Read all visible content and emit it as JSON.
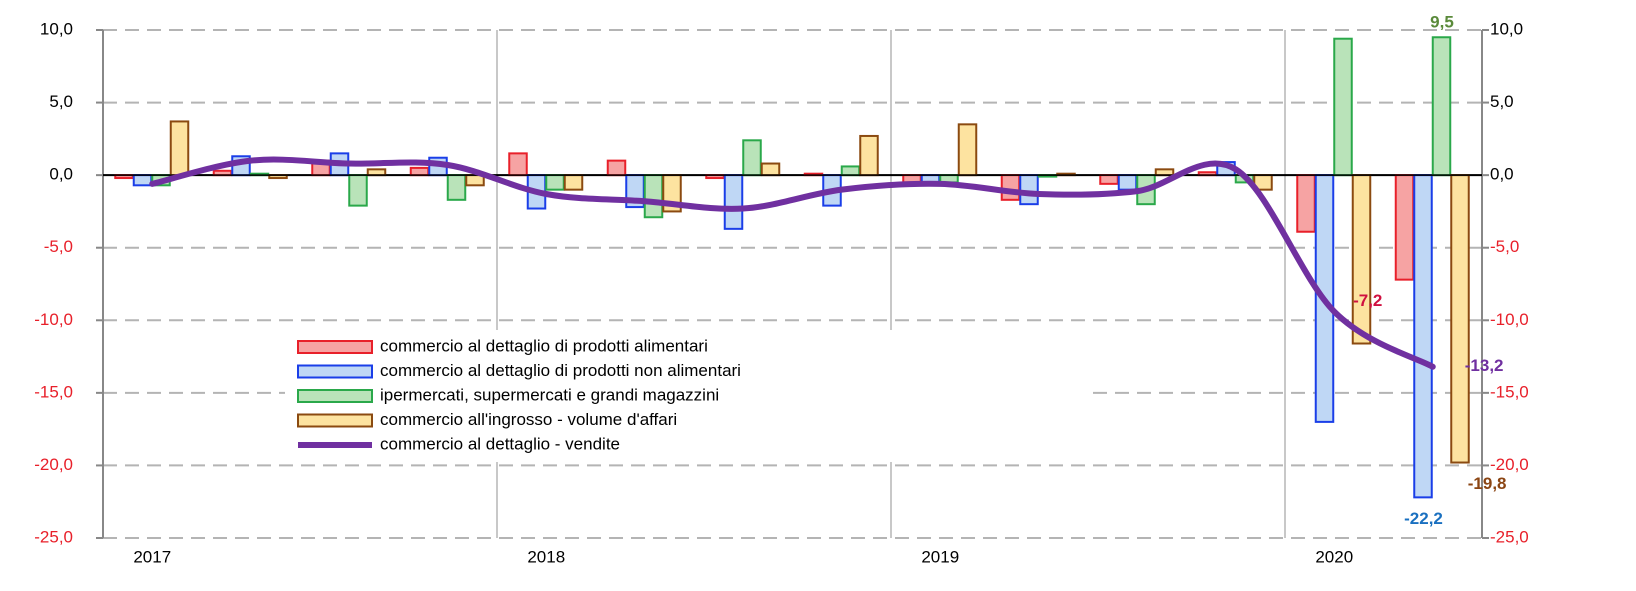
{
  "chart_data": {
    "type": "bar",
    "categories": [
      "2017",
      null,
      null,
      null,
      "2018",
      null,
      null,
      null,
      "2019",
      null,
      null,
      null,
      "2020",
      null
    ],
    "series": [
      {
        "name": "commercio al dettaglio di prodotti alimentari",
        "color": "#e8202a",
        "fill": "#f6a3a3",
        "label_color": "#d01040",
        "values": [
          -0.2,
          0.3,
          1.0,
          0.5,
          1.5,
          1.0,
          -0.2,
          0.1,
          -0.5,
          -1.7,
          -0.6,
          0.2,
          -3.9,
          -7.2
        ],
        "value_labels": [
          null,
          null,
          null,
          null,
          null,
          null,
          null,
          null,
          null,
          null,
          null,
          null,
          null,
          "-7,2"
        ]
      },
      {
        "name": "commercio al dettaglio di prodotti non alimentari",
        "color": "#1a3ee8",
        "fill": "#bfd7f5",
        "label_color": "#1a70c0",
        "values": [
          -0.7,
          1.3,
          1.5,
          1.2,
          -2.3,
          -2.2,
          -3.7,
          -2.1,
          -0.5,
          -2.0,
          -1.0,
          0.9,
          -17.0,
          -22.2
        ],
        "value_labels": [
          null,
          null,
          null,
          null,
          null,
          null,
          null,
          null,
          null,
          null,
          null,
          null,
          null,
          "-22,2"
        ]
      },
      {
        "name": "ipermercati, supermercati e grandi magazzini",
        "color": "#2aa84a",
        "fill": "#b9e3b9",
        "label_color": "#5a8a3a",
        "values": [
          -0.7,
          0.1,
          -2.1,
          -1.7,
          -1.0,
          -2.9,
          2.4,
          0.6,
          -0.5,
          -0.1,
          -2.0,
          -0.5,
          9.4,
          9.5
        ],
        "value_labels": [
          null,
          null,
          null,
          null,
          null,
          null,
          null,
          null,
          null,
          null,
          null,
          null,
          null,
          "9,5"
        ]
      },
      {
        "name": "commercio all'ingrosso - volume d'affari",
        "color": "#8b4a10",
        "fill": "#fde3a0",
        "label_color": "#8b4513",
        "values": [
          3.7,
          -0.2,
          0.4,
          -0.7,
          -1.0,
          -2.5,
          0.8,
          2.7,
          3.5,
          0.1,
          0.4,
          -1.0,
          -11.6,
          -19.8
        ],
        "value_labels": [
          null,
          null,
          null,
          null,
          null,
          null,
          null,
          null,
          null,
          null,
          null,
          null,
          null,
          "-19,8"
        ]
      },
      {
        "name": "commercio al dettaglio - vendite",
        "type": "line",
        "color": "#7030a0",
        "label_color": "#7030a0",
        "values": [
          -0.6,
          1.0,
          0.8,
          0.7,
          -1.3,
          -1.8,
          -2.3,
          -1.0,
          -0.6,
          -1.3,
          -1.1,
          0.4,
          -9.4,
          -13.2
        ],
        "value_labels": [
          null,
          null,
          null,
          null,
          null,
          null,
          null,
          null,
          null,
          null,
          null,
          null,
          null,
          "-13,2"
        ]
      }
    ],
    "ylim": [
      -25,
      10
    ],
    "yticks": [
      {
        "value": -25,
        "label": "-25,0"
      },
      {
        "value": -20,
        "label": "-20,0"
      },
      {
        "value": -15,
        "label": "-15,0"
      },
      {
        "value": -10,
        "label": "-10,0"
      },
      {
        "value": -5,
        "label": "-5,0"
      },
      {
        "value": 0,
        "label": "0,0"
      },
      {
        "value": 5,
        "label": "5,0"
      },
      {
        "value": 10,
        "label": "10,0"
      }
    ],
    "y2lim": [
      -25,
      10
    ],
    "y2ticks": [
      {
        "value": -25,
        "label": "-25,0"
      },
      {
        "value": -20,
        "label": "-20,0"
      },
      {
        "value": -15,
        "label": "-15,0"
      },
      {
        "value": -10,
        "label": "-10,0"
      },
      {
        "value": -5,
        "label": "-5,0"
      },
      {
        "value": 0,
        "label": "0,0"
      },
      {
        "value": 5,
        "label": "5,0"
      },
      {
        "value": 10,
        "label": "10,0"
      }
    ],
    "grid": true,
    "negative_tick_color": "#e8202a"
  }
}
